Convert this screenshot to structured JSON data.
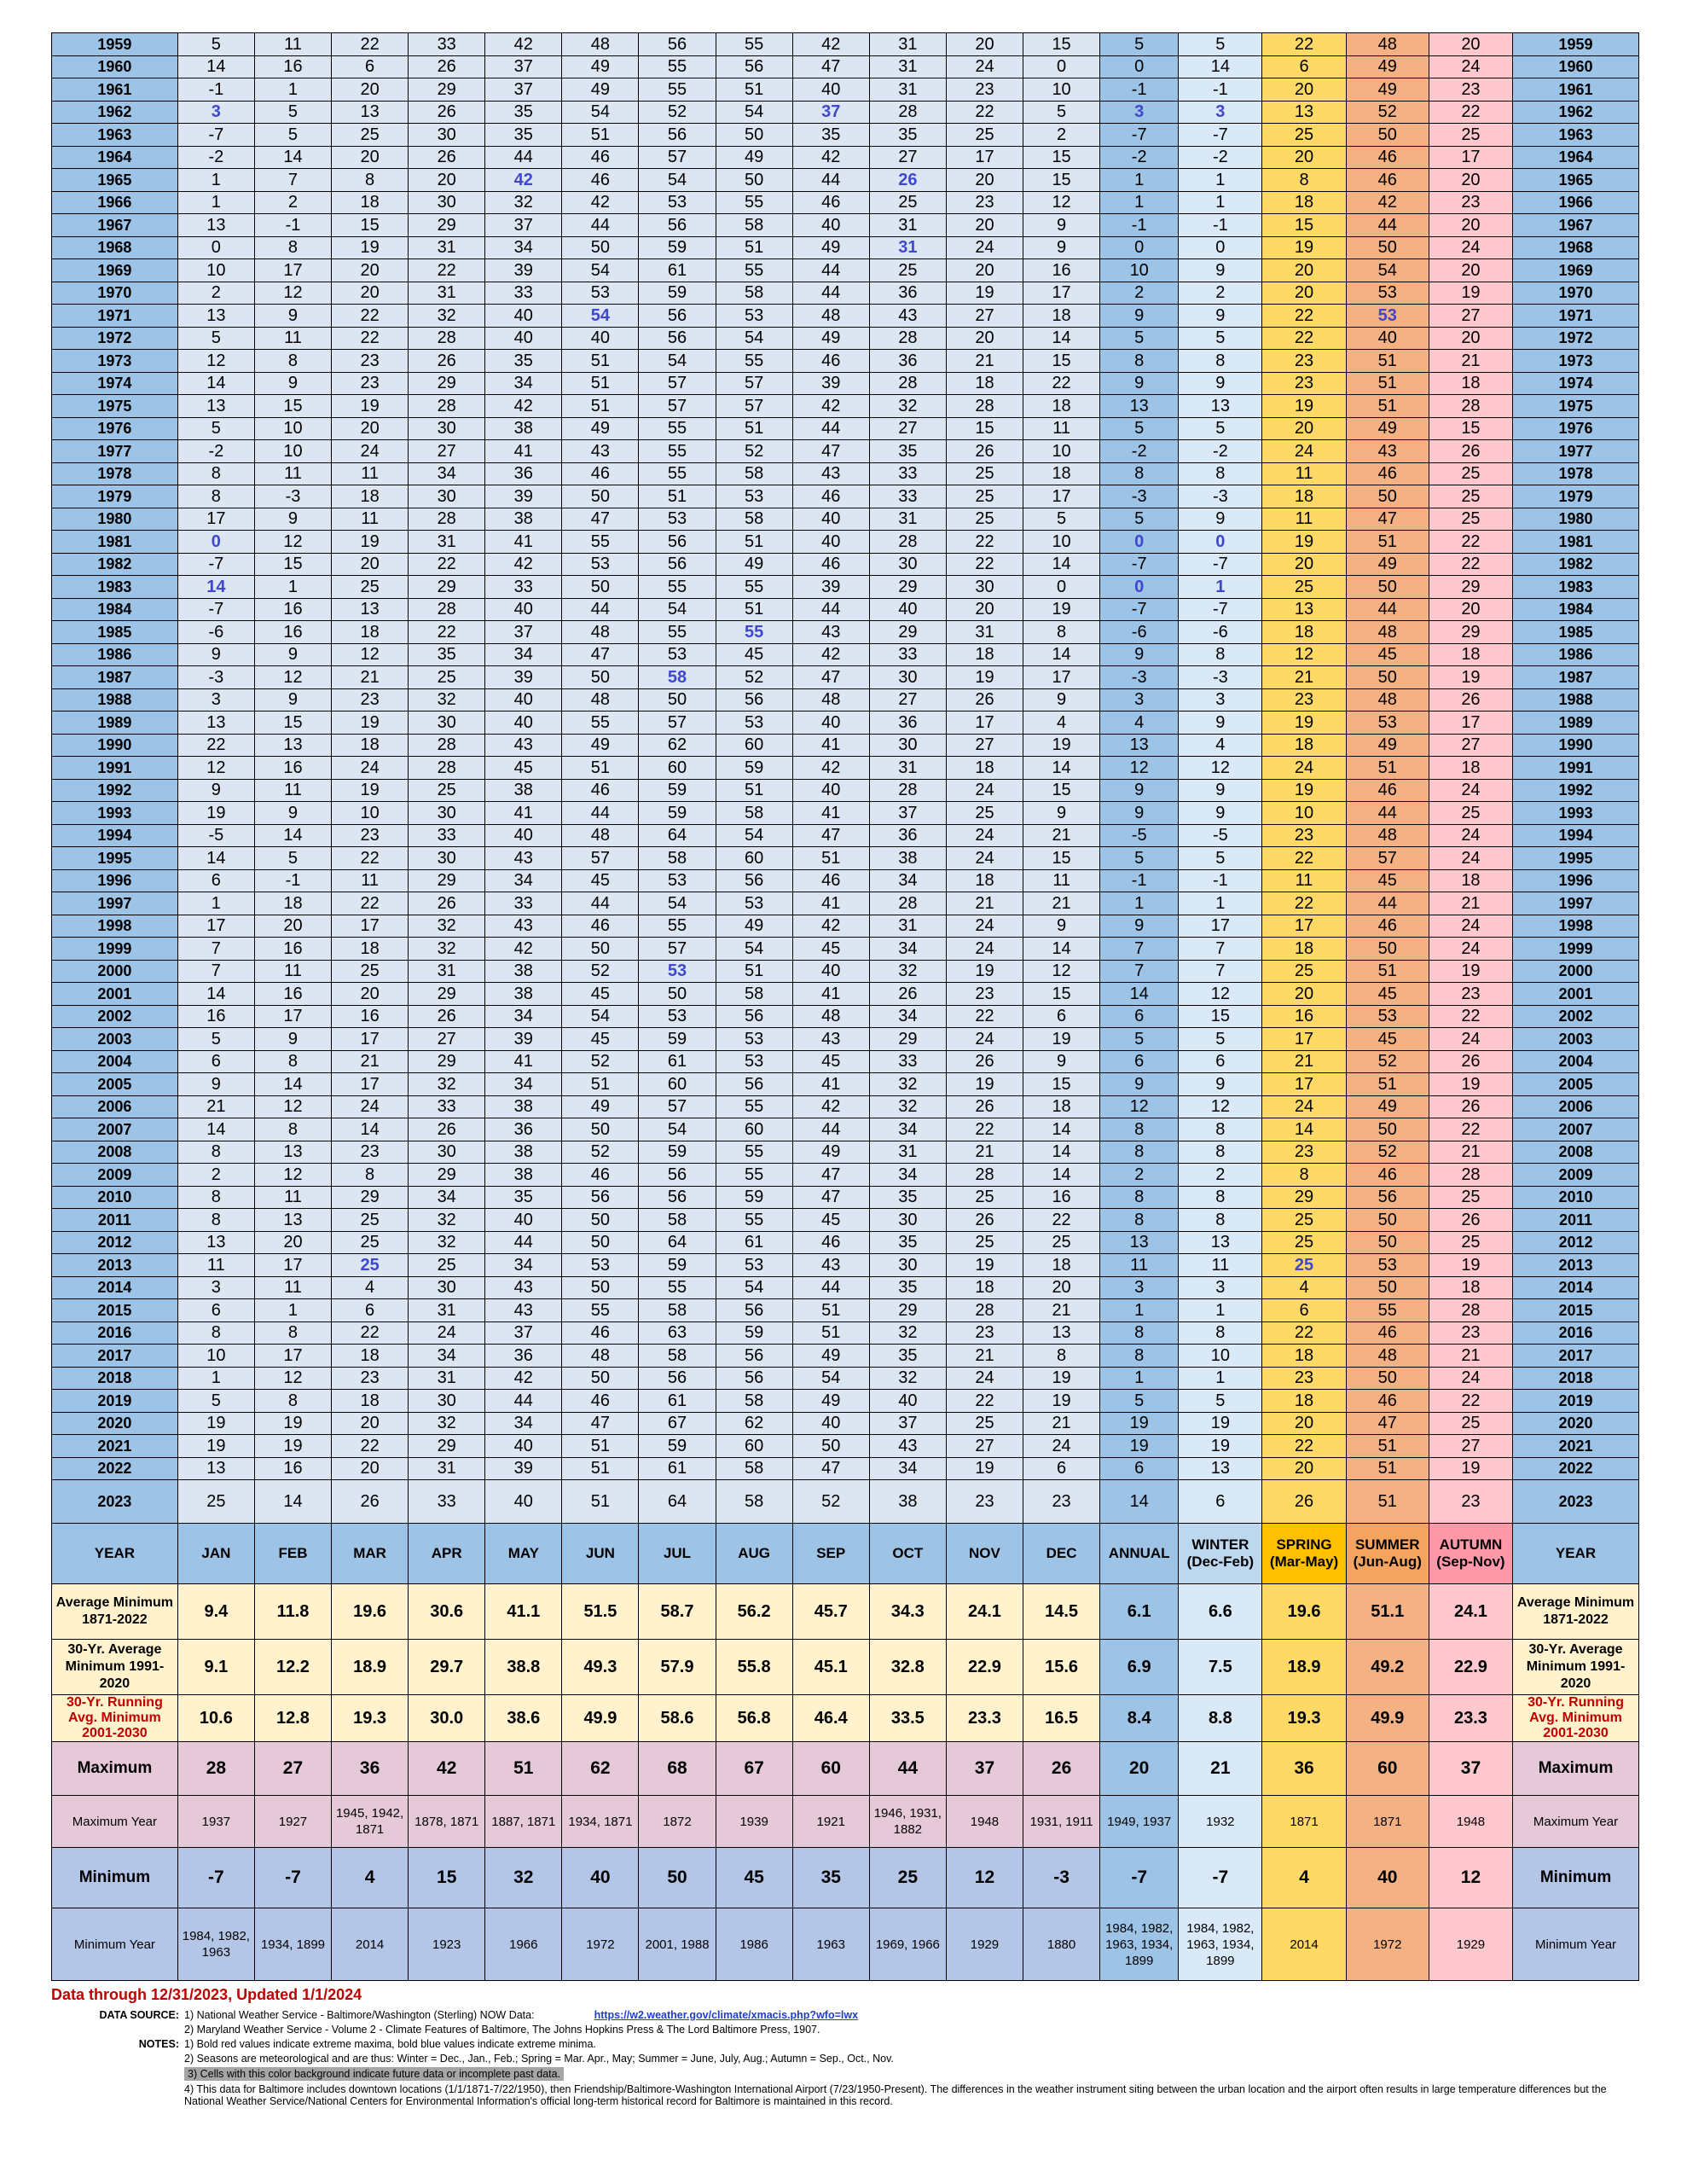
{
  "colors": {
    "year": "#9dc3e6",
    "month": "#dce6f2",
    "annual": "#9dc3e6",
    "winter": "#dae9f8",
    "spring": "#ffd966",
    "summer": "#f4b183",
    "autumn": "#ffc7ce",
    "extreme_min": "#3f48cc",
    "extreme_max": "#c00000"
  },
  "headers": [
    "YEAR",
    "JAN",
    "FEB",
    "MAR",
    "APR",
    "MAY",
    "JUN",
    "JUL",
    "AUG",
    "SEP",
    "OCT",
    "NOV",
    "DEC",
    "ANNUAL",
    "WINTER\n(Dec-Feb)",
    "SPRING\n(Mar-May)",
    "SUMMER\n(Jun-Aug)",
    "AUTUMN\n(Sep-Nov)",
    "YEAR"
  ],
  "rows": [
    [
      "1959",
      "5",
      "11",
      "22",
      "33",
      "42",
      "48",
      "56",
      "55",
      "42",
      "31",
      "20",
      "15",
      "5",
      "5",
      "22",
      "48",
      "20"
    ],
    [
      "1960",
      "14",
      "16",
      "6",
      "26",
      "37",
      "49",
      "55",
      "56",
      "47",
      "31",
      "24",
      "0",
      "0",
      "14",
      "6",
      "49",
      "24"
    ],
    [
      "1961",
      "-1",
      "1",
      "20",
      "29",
      "37",
      "49",
      "55",
      "51",
      "40",
      "31",
      "23",
      "10",
      "-1",
      "-1",
      "20",
      "49",
      "23"
    ],
    [
      "1962",
      "3",
      "5",
      "13",
      "26",
      "35",
      "54",
      "52",
      "54",
      "37",
      "28",
      "22",
      "5",
      "3",
      "3",
      "13",
      "52",
      "22"
    ],
    [
      "1963",
      "-7",
      "5",
      "25",
      "30",
      "35",
      "51",
      "56",
      "50",
      "35",
      "35",
      "25",
      "2",
      "-7",
      "-7",
      "25",
      "50",
      "25"
    ],
    [
      "1964",
      "-2",
      "14",
      "20",
      "26",
      "44",
      "46",
      "57",
      "49",
      "42",
      "27",
      "17",
      "15",
      "-2",
      "-2",
      "20",
      "46",
      "17"
    ],
    [
      "1965",
      "1",
      "7",
      "8",
      "20",
      "42",
      "46",
      "54",
      "50",
      "44",
      "26",
      "20",
      "15",
      "1",
      "1",
      "8",
      "46",
      "20"
    ],
    [
      "1966",
      "1",
      "2",
      "18",
      "30",
      "32",
      "42",
      "53",
      "55",
      "46",
      "25",
      "23",
      "12",
      "1",
      "1",
      "18",
      "42",
      "23"
    ],
    [
      "1967",
      "13",
      "-1",
      "15",
      "29",
      "37",
      "44",
      "56",
      "58",
      "40",
      "31",
      "20",
      "9",
      "-1",
      "-1",
      "15",
      "44",
      "20"
    ],
    [
      "1968",
      "0",
      "8",
      "19",
      "31",
      "34",
      "50",
      "59",
      "51",
      "49",
      "31",
      "24",
      "9",
      "0",
      "0",
      "19",
      "50",
      "24"
    ],
    [
      "1969",
      "10",
      "17",
      "20",
      "22",
      "39",
      "54",
      "61",
      "55",
      "44",
      "25",
      "20",
      "16",
      "10",
      "9",
      "20",
      "54",
      "20"
    ],
    [
      "1970",
      "2",
      "12",
      "20",
      "31",
      "33",
      "53",
      "59",
      "58",
      "44",
      "36",
      "19",
      "17",
      "2",
      "2",
      "20",
      "53",
      "19"
    ],
    [
      "1971",
      "13",
      "9",
      "22",
      "32",
      "40",
      "54",
      "56",
      "53",
      "48",
      "43",
      "27",
      "18",
      "9",
      "9",
      "22",
      "53",
      "27"
    ],
    [
      "1972",
      "5",
      "11",
      "22",
      "28",
      "40",
      "40",
      "56",
      "54",
      "49",
      "28",
      "20",
      "14",
      "5",
      "5",
      "22",
      "40",
      "20"
    ],
    [
      "1973",
      "12",
      "8",
      "23",
      "26",
      "35",
      "51",
      "54",
      "55",
      "46",
      "36",
      "21",
      "15",
      "8",
      "8",
      "23",
      "51",
      "21"
    ],
    [
      "1974",
      "14",
      "9",
      "23",
      "29",
      "34",
      "51",
      "57",
      "57",
      "39",
      "28",
      "18",
      "22",
      "9",
      "9",
      "23",
      "51",
      "18"
    ],
    [
      "1975",
      "13",
      "15",
      "19",
      "28",
      "42",
      "51",
      "57",
      "57",
      "42",
      "32",
      "28",
      "18",
      "13",
      "13",
      "19",
      "51",
      "28"
    ],
    [
      "1976",
      "5",
      "10",
      "20",
      "30",
      "38",
      "49",
      "55",
      "51",
      "44",
      "27",
      "15",
      "11",
      "5",
      "5",
      "20",
      "49",
      "15"
    ],
    [
      "1977",
      "-2",
      "10",
      "24",
      "27",
      "41",
      "43",
      "55",
      "52",
      "47",
      "35",
      "26",
      "10",
      "-2",
      "-2",
      "24",
      "43",
      "26"
    ],
    [
      "1978",
      "8",
      "11",
      "11",
      "34",
      "36",
      "46",
      "55",
      "58",
      "43",
      "33",
      "25",
      "18",
      "8",
      "8",
      "11",
      "46",
      "25"
    ],
    [
      "1979",
      "8",
      "-3",
      "18",
      "30",
      "39",
      "50",
      "51",
      "53",
      "46",
      "33",
      "25",
      "17",
      "-3",
      "-3",
      "18",
      "50",
      "25"
    ],
    [
      "1980",
      "17",
      "9",
      "11",
      "28",
      "38",
      "47",
      "53",
      "58",
      "40",
      "31",
      "25",
      "5",
      "5",
      "9",
      "11",
      "47",
      "25"
    ],
    [
      "1981",
      "0",
      "12",
      "19",
      "31",
      "41",
      "55",
      "56",
      "51",
      "40",
      "28",
      "22",
      "10",
      "0",
      "0",
      "19",
      "51",
      "22"
    ],
    [
      "1982",
      "-7",
      "15",
      "20",
      "22",
      "42",
      "53",
      "56",
      "49",
      "46",
      "30",
      "22",
      "14",
      "-7",
      "-7",
      "20",
      "49",
      "22"
    ],
    [
      "1983",
      "14",
      "1",
      "25",
      "29",
      "33",
      "50",
      "55",
      "55",
      "39",
      "29",
      "30",
      "0",
      "0",
      "1",
      "25",
      "50",
      "29"
    ],
    [
      "1984",
      "-7",
      "16",
      "13",
      "28",
      "40",
      "44",
      "54",
      "51",
      "44",
      "40",
      "20",
      "19",
      "-7",
      "-7",
      "13",
      "44",
      "20"
    ],
    [
      "1985",
      "-6",
      "16",
      "18",
      "22",
      "37",
      "48",
      "55",
      "55",
      "43",
      "29",
      "31",
      "8",
      "-6",
      "-6",
      "18",
      "48",
      "29"
    ],
    [
      "1986",
      "9",
      "9",
      "12",
      "35",
      "34",
      "47",
      "53",
      "45",
      "42",
      "33",
      "18",
      "14",
      "9",
      "8",
      "12",
      "45",
      "18"
    ],
    [
      "1987",
      "-3",
      "12",
      "21",
      "25",
      "39",
      "50",
      "58",
      "52",
      "47",
      "30",
      "19",
      "17",
      "-3",
      "-3",
      "21",
      "50",
      "19"
    ],
    [
      "1988",
      "3",
      "9",
      "23",
      "32",
      "40",
      "48",
      "50",
      "56",
      "48",
      "27",
      "26",
      "9",
      "3",
      "3",
      "23",
      "48",
      "26"
    ],
    [
      "1989",
      "13",
      "15",
      "19",
      "30",
      "40",
      "55",
      "57",
      "53",
      "40",
      "36",
      "17",
      "4",
      "4",
      "9",
      "19",
      "53",
      "17"
    ],
    [
      "1990",
      "22",
      "13",
      "18",
      "28",
      "43",
      "49",
      "62",
      "60",
      "41",
      "30",
      "27",
      "19",
      "13",
      "4",
      "18",
      "49",
      "27"
    ],
    [
      "1991",
      "12",
      "16",
      "24",
      "28",
      "45",
      "51",
      "60",
      "59",
      "42",
      "31",
      "18",
      "14",
      "12",
      "12",
      "24",
      "51",
      "18"
    ],
    [
      "1992",
      "9",
      "11",
      "19",
      "25",
      "38",
      "46",
      "59",
      "51",
      "40",
      "28",
      "24",
      "15",
      "9",
      "9",
      "19",
      "46",
      "24"
    ],
    [
      "1993",
      "19",
      "9",
      "10",
      "30",
      "41",
      "44",
      "59",
      "58",
      "41",
      "37",
      "25",
      "9",
      "9",
      "9",
      "10",
      "44",
      "25"
    ],
    [
      "1994",
      "-5",
      "14",
      "23",
      "33",
      "40",
      "48",
      "64",
      "54",
      "47",
      "36",
      "24",
      "21",
      "-5",
      "-5",
      "23",
      "48",
      "24"
    ],
    [
      "1995",
      "14",
      "5",
      "22",
      "30",
      "43",
      "57",
      "58",
      "60",
      "51",
      "38",
      "24",
      "15",
      "5",
      "5",
      "22",
      "57",
      "24"
    ],
    [
      "1996",
      "6",
      "-1",
      "11",
      "29",
      "34",
      "45",
      "53",
      "56",
      "46",
      "34",
      "18",
      "11",
      "-1",
      "-1",
      "11",
      "45",
      "18"
    ],
    [
      "1997",
      "1",
      "18",
      "22",
      "26",
      "33",
      "44",
      "54",
      "53",
      "41",
      "28",
      "21",
      "21",
      "1",
      "1",
      "22",
      "44",
      "21"
    ],
    [
      "1998",
      "17",
      "20",
      "17",
      "32",
      "43",
      "46",
      "55",
      "49",
      "42",
      "31",
      "24",
      "9",
      "9",
      "17",
      "17",
      "46",
      "24"
    ],
    [
      "1999",
      "7",
      "16",
      "18",
      "32",
      "42",
      "50",
      "57",
      "54",
      "45",
      "34",
      "24",
      "14",
      "7",
      "7",
      "18",
      "50",
      "24"
    ],
    [
      "2000",
      "7",
      "11",
      "25",
      "31",
      "38",
      "52",
      "53",
      "51",
      "40",
      "32",
      "19",
      "12",
      "7",
      "7",
      "25",
      "51",
      "19"
    ],
    [
      "2001",
      "14",
      "16",
      "20",
      "29",
      "38",
      "45",
      "50",
      "58",
      "41",
      "26",
      "23",
      "15",
      "14",
      "12",
      "20",
      "45",
      "23"
    ],
    [
      "2002",
      "16",
      "17",
      "16",
      "26",
      "34",
      "54",
      "53",
      "56",
      "48",
      "34",
      "22",
      "6",
      "6",
      "15",
      "16",
      "53",
      "22"
    ],
    [
      "2003",
      "5",
      "9",
      "17",
      "27",
      "39",
      "45",
      "59",
      "53",
      "43",
      "29",
      "24",
      "19",
      "5",
      "5",
      "17",
      "45",
      "24"
    ],
    [
      "2004",
      "6",
      "8",
      "21",
      "29",
      "41",
      "52",
      "61",
      "53",
      "45",
      "33",
      "26",
      "9",
      "6",
      "6",
      "21",
      "52",
      "26"
    ],
    [
      "2005",
      "9",
      "14",
      "17",
      "32",
      "34",
      "51",
      "60",
      "56",
      "41",
      "32",
      "19",
      "15",
      "9",
      "9",
      "17",
      "51",
      "19"
    ],
    [
      "2006",
      "21",
      "12",
      "24",
      "33",
      "38",
      "49",
      "57",
      "55",
      "42",
      "32",
      "26",
      "18",
      "12",
      "12",
      "24",
      "49",
      "26"
    ],
    [
      "2007",
      "14",
      "8",
      "14",
      "26",
      "36",
      "50",
      "54",
      "60",
      "44",
      "34",
      "22",
      "14",
      "8",
      "8",
      "14",
      "50",
      "22"
    ],
    [
      "2008",
      "8",
      "13",
      "23",
      "30",
      "38",
      "52",
      "59",
      "55",
      "49",
      "31",
      "21",
      "14",
      "8",
      "8",
      "23",
      "52",
      "21"
    ],
    [
      "2009",
      "2",
      "12",
      "8",
      "29",
      "38",
      "46",
      "56",
      "55",
      "47",
      "34",
      "28",
      "14",
      "2",
      "2",
      "8",
      "46",
      "28"
    ],
    [
      "2010",
      "8",
      "11",
      "29",
      "34",
      "35",
      "56",
      "56",
      "59",
      "47",
      "35",
      "25",
      "16",
      "8",
      "8",
      "29",
      "56",
      "25"
    ],
    [
      "2011",
      "8",
      "13",
      "25",
      "32",
      "40",
      "50",
      "58",
      "55",
      "45",
      "30",
      "26",
      "22",
      "8",
      "8",
      "25",
      "50",
      "26"
    ],
    [
      "2012",
      "13",
      "20",
      "25",
      "32",
      "44",
      "50",
      "64",
      "61",
      "46",
      "35",
      "25",
      "25",
      "13",
      "13",
      "25",
      "50",
      "25"
    ],
    [
      "2013",
      "11",
      "17",
      "25",
      "25",
      "34",
      "53",
      "59",
      "53",
      "43",
      "30",
      "19",
      "18",
      "11",
      "11",
      "25",
      "53",
      "19"
    ],
    [
      "2014",
      "3",
      "11",
      "4",
      "30",
      "43",
      "50",
      "55",
      "54",
      "44",
      "35",
      "18",
      "20",
      "3",
      "3",
      "4",
      "50",
      "18"
    ],
    [
      "2015",
      "6",
      "1",
      "6",
      "31",
      "43",
      "55",
      "58",
      "56",
      "51",
      "29",
      "28",
      "21",
      "1",
      "1",
      "6",
      "55",
      "28"
    ],
    [
      "2016",
      "8",
      "8",
      "22",
      "24",
      "37",
      "46",
      "63",
      "59",
      "51",
      "32",
      "23",
      "13",
      "8",
      "8",
      "22",
      "46",
      "23"
    ],
    [
      "2017",
      "10",
      "17",
      "18",
      "34",
      "36",
      "48",
      "58",
      "56",
      "49",
      "35",
      "21",
      "8",
      "8",
      "10",
      "18",
      "48",
      "21"
    ],
    [
      "2018",
      "1",
      "12",
      "23",
      "31",
      "42",
      "50",
      "56",
      "56",
      "54",
      "32",
      "24",
      "19",
      "1",
      "1",
      "23",
      "50",
      "24"
    ],
    [
      "2019",
      "5",
      "8",
      "18",
      "30",
      "44",
      "46",
      "61",
      "58",
      "49",
      "40",
      "22",
      "19",
      "5",
      "5",
      "18",
      "46",
      "22"
    ],
    [
      "2020",
      "19",
      "19",
      "20",
      "32",
      "34",
      "47",
      "67",
      "62",
      "40",
      "37",
      "25",
      "21",
      "19",
      "19",
      "20",
      "47",
      "25"
    ],
    [
      "2021",
      "19",
      "19",
      "22",
      "29",
      "40",
      "51",
      "59",
      "60",
      "50",
      "43",
      "27",
      "24",
      "19",
      "19",
      "22",
      "51",
      "27"
    ],
    [
      "2022",
      "13",
      "16",
      "20",
      "31",
      "39",
      "51",
      "61",
      "58",
      "47",
      "34",
      "19",
      "6",
      "6",
      "13",
      "20",
      "51",
      "19"
    ]
  ],
  "extreme_min_cells": [
    [
      4,
      1
    ],
    [
      4,
      9
    ],
    [
      4,
      13
    ],
    [
      4,
      14
    ],
    [
      7,
      5
    ],
    [
      7,
      10
    ],
    [
      10,
      10
    ],
    [
      13,
      6
    ],
    [
      13,
      16
    ],
    [
      23,
      1
    ],
    [
      23,
      13
    ],
    [
      23,
      14
    ],
    [
      25,
      1
    ],
    [
      25,
      13
    ],
    [
      25,
      14
    ],
    [
      27,
      8
    ],
    [
      29,
      7
    ],
    [
      42,
      7
    ],
    [
      55,
      3
    ],
    [
      55,
      15
    ]
  ],
  "row_2023": [
    "2023",
    "25",
    "14",
    "26",
    "33",
    "40",
    "51",
    "64",
    "58",
    "52",
    "38",
    "23",
    "23",
    "14",
    "6",
    "26",
    "51",
    "23"
  ],
  "avg_1871": {
    "label": "Average Minimum 1871-2022",
    "values": [
      "9.4",
      "11.8",
      "19.6",
      "30.6",
      "41.1",
      "51.5",
      "58.7",
      "56.2",
      "45.7",
      "34.3",
      "24.1",
      "14.5",
      "6.1",
      "6.6",
      "19.6",
      "51.1",
      "24.1"
    ]
  },
  "avg_1991": {
    "label": "30-Yr. Average Minimum 1991-2020",
    "values": [
      "9.1",
      "12.2",
      "18.9",
      "29.7",
      "38.8",
      "49.3",
      "57.9",
      "55.8",
      "45.1",
      "32.8",
      "22.9",
      "15.6",
      "6.9",
      "7.5",
      "18.9",
      "49.2",
      "22.9"
    ]
  },
  "avg_2001": {
    "label": "30-Yr. Running Avg. Minimum 2001-2030",
    "values": [
      "10.6",
      "12.8",
      "19.3",
      "30.0",
      "38.6",
      "49.9",
      "58.6",
      "56.8",
      "46.4",
      "33.5",
      "23.3",
      "16.5",
      "8.4",
      "8.8",
      "19.3",
      "49.9",
      "23.3"
    ]
  },
  "maximum": {
    "label": "Maximum",
    "values": [
      "28",
      "27",
      "36",
      "42",
      "51",
      "62",
      "68",
      "67",
      "60",
      "44",
      "37",
      "26",
      "20",
      "21",
      "36",
      "60",
      "37"
    ]
  },
  "maximum_year": {
    "label": "Maximum Year",
    "values": [
      "1937",
      "1927",
      "1945, 1942, 1871",
      "1878, 1871",
      "1887, 1871",
      "1934, 1871",
      "1872",
      "1939",
      "1921",
      "1946, 1931, 1882",
      "1948",
      "1931, 1911",
      "1949, 1937",
      "1932",
      "1871",
      "1871",
      "1948"
    ]
  },
  "minimum": {
    "label": "Minimum",
    "values": [
      "-7",
      "-7",
      "4",
      "15",
      "32",
      "40",
      "50",
      "45",
      "35",
      "25",
      "12",
      "-3",
      "-7",
      "-7",
      "4",
      "40",
      "12"
    ]
  },
  "minimum_year": {
    "label": "Minimum Year",
    "values": [
      "1984, 1982, 1963",
      "1934, 1899",
      "2014",
      "1923",
      "1966",
      "1972",
      "2001, 1988",
      "1986",
      "1963",
      "1969, 1966",
      "1929",
      "1880",
      "1984, 1982, 1963, 1934, 1899",
      "1984, 1982, 1963, 1934, 1899",
      "2014",
      "1972",
      "1929"
    ]
  },
  "footer": {
    "updated": "Data through 12/31/2023, Updated 1/1/2024",
    "data_source_key": "DATA SOURCE:",
    "source1": "1) National Weather Service - Baltimore/Washington (Sterling) NOW Data:",
    "source1_link": "https://w2.weather.gov/climate/xmacis.php?wfo=lwx",
    "source2": "2) Maryland Weather Service - Volume 2 - Climate Features of Baltimore, The Johns Hopkins Press & The Lord Baltimore Press, 1907.",
    "notes_key": "NOTES:",
    "note1": "1) Bold red values indicate extreme maxima, bold blue values indicate extreme minima.",
    "note2": "2) Seasons are meteorological and are thus: Winter = Dec., Jan., Feb.; Spring = Mar. Apr., May; Summer = June, July, Aug.; Autumn = Sep., Oct., Nov.",
    "note3": "3) Cells with this color background indicate future data or incomplete past data.",
    "note4": "4) This data for Baltimore includes downtown locations (1/1/1871-7/22/1950), then Friendship/Baltimore-Washington International Airport (7/23/1950-Present). The differences in the weather instrument siting between the urban location and the airport often results in large temperature differences but the National Weather Service/National Centers for Environmental Information's official long-term historical record for Baltimore is maintained in this record."
  }
}
